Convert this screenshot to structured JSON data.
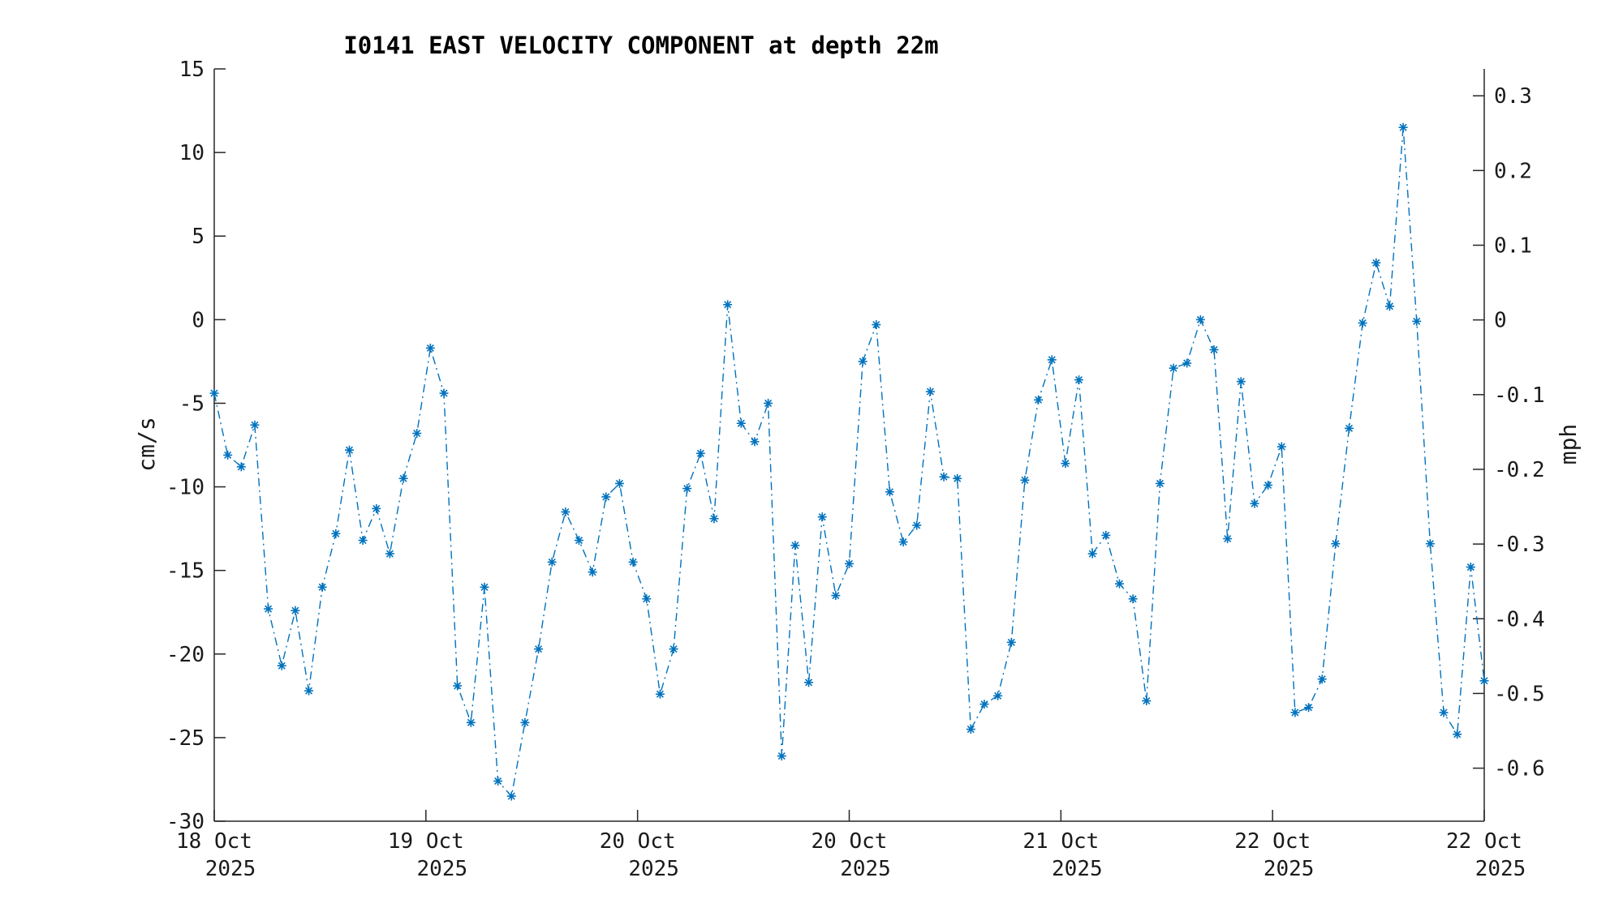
{
  "chart_data": {
    "type": "line",
    "title": "I0141 EAST VELOCITY COMPONENT at depth 22m",
    "ylabel": "cm/s",
    "y2label": "mph",
    "ylim": [
      -30,
      15
    ],
    "y2lim": [
      -0.671,
      0.336
    ],
    "yticks": [
      "15",
      "10",
      "5",
      "0",
      "-5",
      "-10",
      "-15",
      "-20",
      "-25",
      "-30"
    ],
    "y2ticks": [
      "0.3",
      "0.2",
      "0.1",
      "0",
      "-0.1",
      "-0.2",
      "-0.3",
      "-0.4",
      "-0.5",
      "-0.6"
    ],
    "xticks": [
      {
        "line1": "18 Oct",
        "line2": "2025"
      },
      {
        "line1": "19 Oct",
        "line2": "2025"
      },
      {
        "line1": "20 Oct",
        "line2": "2025"
      },
      {
        "line1": "20 Oct",
        "line2": "2025"
      },
      {
        "line1": "21 Oct",
        "line2": "2025"
      },
      {
        "line1": "22 Oct",
        "line2": "2025"
      },
      {
        "line1": "22 Oct",
        "line2": "2025"
      }
    ],
    "series": [
      {
        "line_style": "dash-dot",
        "marker": "asterisk",
        "color": "#0072BD",
        "values": [
          -4.4,
          -8.1,
          -8.8,
          -6.3,
          -17.3,
          -20.7,
          -17.4,
          -22.2,
          -16.0,
          -12.8,
          -7.8,
          -13.2,
          -11.3,
          -14.0,
          -9.5,
          -6.8,
          -1.7,
          -4.4,
          -21.9,
          -24.1,
          -16.0,
          -27.6,
          -28.5,
          -24.1,
          -19.7,
          -14.5,
          -11.5,
          -13.2,
          -15.1,
          -10.6,
          -9.8,
          -14.5,
          -16.7,
          -22.4,
          -19.7,
          -10.1,
          -8.0,
          -11.9,
          0.9,
          -6.2,
          -7.3,
          -5.0,
          -26.1,
          -13.5,
          -21.7,
          -11.8,
          -16.5,
          -14.6,
          -2.5,
          -0.3,
          -10.3,
          -13.3,
          -12.3,
          -4.3,
          -9.4,
          -9.5,
          -24.5,
          -23.0,
          -22.5,
          -19.3,
          -9.6,
          -4.8,
          -2.4,
          -8.6,
          -3.6,
          -14.0,
          -12.9,
          -15.8,
          -16.7,
          -22.8,
          -9.8,
          -2.9,
          -2.6,
          0.0,
          -1.8,
          -13.1,
          -3.7,
          -11.0,
          -9.9,
          -7.6,
          -23.5,
          -23.2,
          -21.5,
          -13.4,
          -6.5,
          -0.2,
          3.4,
          0.8,
          11.5,
          -0.1,
          -13.4,
          -23.5,
          -24.8,
          -14.8,
          -21.6
        ]
      }
    ],
    "grid": false,
    "legend": "none"
  }
}
